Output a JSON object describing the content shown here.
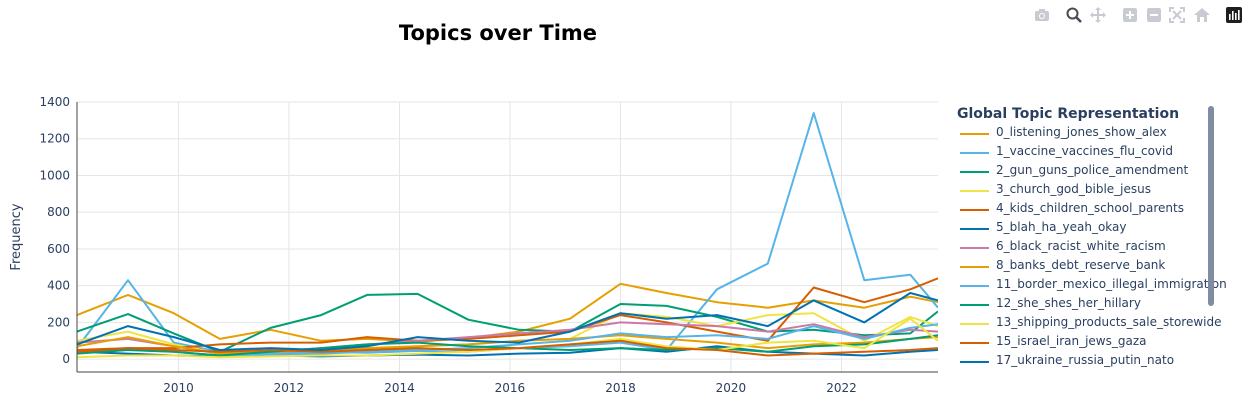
{
  "modebar": {
    "buttons": [
      "camera-icon",
      "zoom-icon",
      "pan-icon",
      "zoom-in-icon",
      "zoom-out-icon",
      "autoscale-icon",
      "reset-axes-icon",
      "plotly-logo-icon"
    ]
  },
  "chart_data": {
    "type": "line",
    "title": "Topics over Time",
    "xlabel": "",
    "ylabel": "Frequency",
    "xlim": [
      "2008-03-01",
      "2023-10-01"
    ],
    "ylim": [
      -70,
      1400
    ],
    "xticks": [
      "2010",
      "2012",
      "2014",
      "2016",
      "2018",
      "2020",
      "2022"
    ],
    "yticks": [
      "0",
      "200",
      "400",
      "600",
      "800",
      "1000",
      "1200",
      "1400"
    ],
    "grid": true,
    "legend_title": "Global Topic Representation",
    "legend_position": "right",
    "x": [
      "2008-03-01",
      "2009-02-01",
      "2009-12-01",
      "2010-10-01",
      "2011-09-01",
      "2012-08-01",
      "2013-06-01",
      "2014-05-01",
      "2015-04-01",
      "2016-03-01",
      "2017-02-01",
      "2018-01-01",
      "2018-11-01",
      "2019-10-01",
      "2020-09-01",
      "2021-07-01",
      "2022-06-01",
      "2023-04-01",
      "2023-10-01"
    ],
    "series": [
      {
        "name": "0_listening_jones_show_alex",
        "color": "#E69F00",
        "values": [
          240,
          350,
          250,
          110,
          160,
          100,
          110,
          95,
          115,
          150,
          220,
          410,
          360,
          310,
          280,
          320,
          280,
          340,
          310
        ]
      },
      {
        "name": "1_vaccine_vaccines_flu_covid",
        "color": "#56B4E9",
        "values": [
          60,
          430,
          90,
          40,
          30,
          40,
          35,
          45,
          40,
          60,
          70,
          90,
          50,
          380,
          520,
          1340,
          430,
          460,
          280
        ]
      },
      {
        "name": "2_gun_guns_police_amendment",
        "color": "#009E73",
        "values": [
          150,
          245,
          140,
          40,
          170,
          240,
          350,
          355,
          215,
          160,
          150,
          300,
          290,
          230,
          150,
          160,
          130,
          140,
          260
        ]
      },
      {
        "name": "3_church_god_bible_jesus",
        "color": "#F0E442",
        "values": [
          100,
          150,
          80,
          30,
          50,
          40,
          60,
          70,
          80,
          100,
          110,
          250,
          230,
          180,
          240,
          250,
          100,
          230,
          180
        ]
      },
      {
        "name": "4_kids_children_school_parents",
        "color": "#D55E00",
        "values": [
          50,
          60,
          60,
          80,
          90,
          90,
          120,
          100,
          110,
          130,
          150,
          240,
          200,
          150,
          100,
          390,
          310,
          380,
          440
        ]
      },
      {
        "name": "5_blah_ha_yeah_okay",
        "color": "#0072B2",
        "values": [
          40,
          30,
          20,
          15,
          20,
          15,
          20,
          25,
          20,
          30,
          35,
          60,
          40,
          70,
          40,
          30,
          20,
          40,
          50
        ]
      },
      {
        "name": "6_black_racist_white_racism",
        "color": "#CC79A7",
        "values": [
          90,
          110,
          70,
          30,
          40,
          60,
          80,
          100,
          120,
          140,
          160,
          200,
          190,
          180,
          150,
          190,
          120,
          160,
          150
        ]
      },
      {
        "name": "8_banks_debt_reserve_bank",
        "color": "#E69F00",
        "values": [
          70,
          120,
          70,
          30,
          40,
          50,
          60,
          70,
          80,
          100,
          110,
          130,
          110,
          90,
          60,
          80,
          90,
          110,
          120
        ]
      },
      {
        "name": "11_border_mexico_illegal_immigration",
        "color": "#56B4E9",
        "values": [
          40,
          50,
          40,
          20,
          25,
          30,
          40,
          50,
          60,
          80,
          100,
          140,
          120,
          130,
          110,
          180,
          110,
          170,
          190
        ]
      },
      {
        "name": "12_she_shes_her_hillary",
        "color": "#009E73",
        "values": [
          30,
          50,
          40,
          20,
          40,
          60,
          80,
          90,
          70,
          60,
          50,
          60,
          50,
          60,
          40,
          70,
          80,
          110,
          130
        ]
      },
      {
        "name": "13_shipping_products_sale_storewide",
        "color": "#F0E442",
        "values": [
          10,
          20,
          20,
          10,
          15,
          20,
          20,
          30,
          40,
          60,
          80,
          110,
          70,
          50,
          90,
          100,
          60,
          220,
          100
        ]
      },
      {
        "name": "15_israel_iran_jews_gaza",
        "color": "#D55E00",
        "values": [
          40,
          60,
          50,
          40,
          50,
          40,
          50,
          60,
          50,
          60,
          80,
          100,
          60,
          50,
          20,
          30,
          40,
          50,
          60
        ]
      },
      {
        "name": "17_ukraine_russia_putin_nato",
        "color": "#0072B2",
        "values": [
          80,
          180,
          120,
          50,
          60,
          50,
          70,
          120,
          100,
          90,
          150,
          250,
          220,
          240,
          180,
          320,
          200,
          360,
          320
        ]
      }
    ]
  }
}
